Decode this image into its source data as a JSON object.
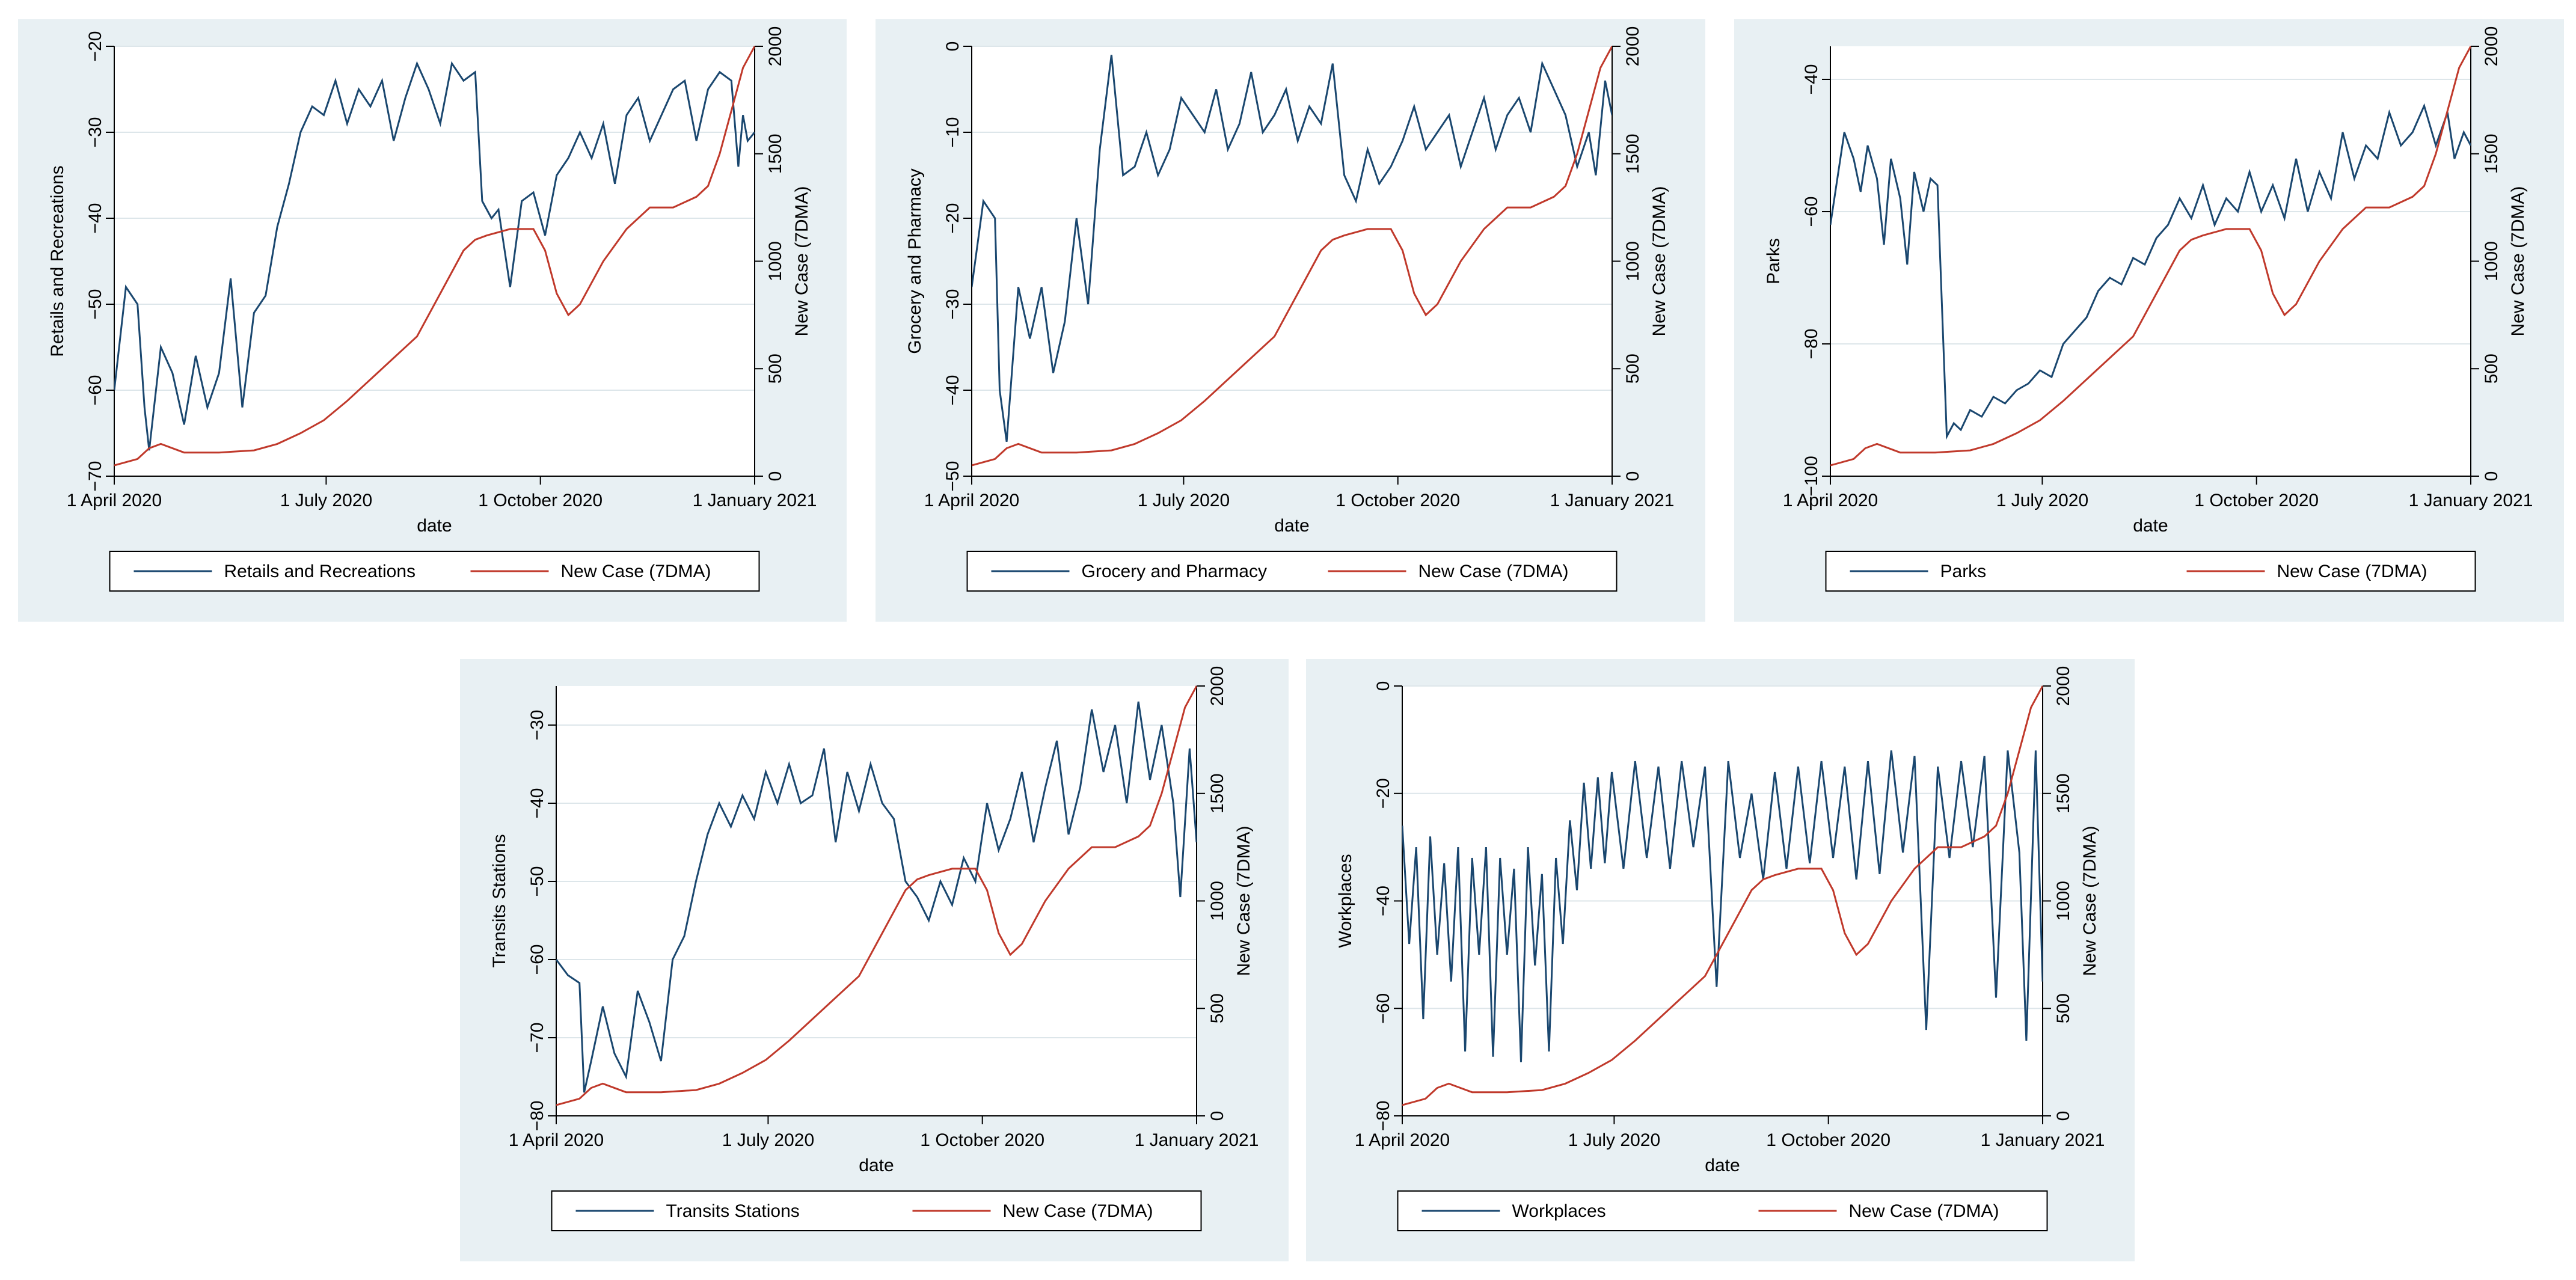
{
  "colors": {
    "mobility": "#1a476f",
    "cases": "#c0392b",
    "panel_bg": "#e8f0f3"
  },
  "chart_data": [
    {
      "type": "line",
      "panel": "p1",
      "xlabel": "date",
      "x_ticks": [
        "1 April 2020",
        "1 July 2020",
        "1 October 2020",
        "1 January 2021"
      ],
      "x_range": [
        0,
        275
      ],
      "ylabel_left": "Retails and Recreations",
      "ylim_left": [
        -70,
        -20
      ],
      "yticks_left": [
        -70,
        -60,
        -50,
        -40,
        -30,
        -20
      ],
      "ylabel_right": "New Case (7DMA)",
      "ylim_right": [
        0,
        2000
      ],
      "yticks_right": [
        0,
        500,
        1000,
        1500,
        2000
      ],
      "legend": [
        "Retails and Recreations",
        "New Case (7DMA)"
      ],
      "mobility": {
        "name": "Retails and Recreations",
        "x": [
          0,
          5,
          10,
          13,
          15,
          20,
          25,
          30,
          35,
          40,
          45,
          50,
          55,
          60,
          65,
          70,
          75,
          80,
          85,
          90,
          95,
          100,
          105,
          110,
          115,
          120,
          125,
          130,
          135,
          140,
          145,
          150,
          155,
          158,
          162,
          165,
          170,
          175,
          180,
          185,
          190,
          195,
          200,
          205,
          210,
          215,
          220,
          225,
          230,
          235,
          240,
          245,
          250,
          255,
          260,
          265,
          268,
          270,
          272,
          275
        ],
        "values": [
          -60,
          -48,
          -50,
          -62,
          -67,
          -55,
          -58,
          -64,
          -56,
          -62,
          -58,
          -47,
          -62,
          -51,
          -49,
          -41,
          -36,
          -30,
          -27,
          -28,
          -24,
          -29,
          -25,
          -27,
          -24,
          -31,
          -26,
          -22,
          -25,
          -29,
          -22,
          -24,
          -23,
          -38,
          -40,
          -39,
          -48,
          -38,
          -37,
          -42,
          -35,
          -33,
          -30,
          -33,
          -29,
          -36,
          -28,
          -26,
          -31,
          -28,
          -25,
          -24,
          -31,
          -25,
          -23,
          -24,
          -34,
          -28,
          -31,
          -30
        ]
      },
      "cases": {
        "name": "New Case (7DMA)",
        "x": [
          0,
          10,
          15,
          20,
          30,
          45,
          60,
          70,
          80,
          90,
          100,
          110,
          120,
          130,
          140,
          150,
          155,
          160,
          170,
          180,
          185,
          190,
          195,
          200,
          210,
          220,
          230,
          240,
          250,
          255,
          260,
          265,
          270,
          275
        ],
        "values": [
          50,
          80,
          130,
          150,
          110,
          110,
          120,
          150,
          200,
          260,
          350,
          450,
          550,
          650,
          850,
          1050,
          1100,
          1120,
          1150,
          1150,
          1050,
          850,
          750,
          800,
          1000,
          1150,
          1250,
          1250,
          1300,
          1350,
          1500,
          1700,
          1900,
          2000
        ]
      }
    },
    {
      "type": "line",
      "panel": "p2",
      "xlabel": "date",
      "x_ticks": [
        "1 April 2020",
        "1 July 2020",
        "1 October 2020",
        "1 January 2021"
      ],
      "x_range": [
        0,
        275
      ],
      "ylabel_left": "Grocery and Pharmacy",
      "ylim_left": [
        -50,
        0
      ],
      "yticks_left": [
        -50,
        -40,
        -30,
        -20,
        -10,
        0
      ],
      "ylabel_right": "New Case (7DMA)",
      "ylim_right": [
        0,
        2000
      ],
      "yticks_right": [
        0,
        500,
        1000,
        1500,
        2000
      ],
      "legend": [
        "Grocery and Pharmacy",
        "New Case (7DMA)"
      ],
      "mobility": {
        "name": "Grocery and Pharmacy",
        "x": [
          0,
          5,
          10,
          12,
          15,
          20,
          25,
          30,
          35,
          40,
          45,
          50,
          55,
          60,
          65,
          70,
          75,
          80,
          85,
          90,
          95,
          100,
          105,
          110,
          115,
          120,
          125,
          130,
          135,
          140,
          145,
          150,
          155,
          160,
          165,
          170,
          175,
          180,
          185,
          190,
          195,
          200,
          205,
          210,
          215,
          220,
          225,
          230,
          235,
          240,
          245,
          250,
          255,
          260,
          265,
          268,
          272,
          275
        ],
        "values": [
          -28,
          -18,
          -20,
          -40,
          -46,
          -28,
          -34,
          -28,
          -38,
          -32,
          -20,
          -30,
          -12,
          -1,
          -15,
          -14,
          -10,
          -15,
          -12,
          -6,
          -8,
          -10,
          -5,
          -12,
          -9,
          -3,
          -10,
          -8,
          -5,
          -11,
          -7,
          -9,
          -2,
          -15,
          -18,
          -12,
          -16,
          -14,
          -11,
          -7,
          -12,
          -10,
          -8,
          -14,
          -10,
          -6,
          -12,
          -8,
          -6,
          -10,
          -2,
          -5,
          -8,
          -14,
          -10,
          -15,
          -4,
          -8
        ]
      },
      "cases": {
        "name": "New Case (7DMA)",
        "x": [
          0,
          10,
          15,
          20,
          30,
          45,
          60,
          70,
          80,
          90,
          100,
          110,
          120,
          130,
          140,
          150,
          155,
          160,
          170,
          180,
          185,
          190,
          195,
          200,
          210,
          220,
          230,
          240,
          250,
          255,
          260,
          265,
          270,
          275
        ],
        "values": [
          50,
          80,
          130,
          150,
          110,
          110,
          120,
          150,
          200,
          260,
          350,
          450,
          550,
          650,
          850,
          1050,
          1100,
          1120,
          1150,
          1150,
          1050,
          850,
          750,
          800,
          1000,
          1150,
          1250,
          1250,
          1300,
          1350,
          1500,
          1700,
          1900,
          2000
        ]
      }
    },
    {
      "type": "line",
      "panel": "p3",
      "xlabel": "date",
      "x_ticks": [
        "1 April 2020",
        "1 July 2020",
        "1 October 2020",
        "1 January 2021"
      ],
      "x_range": [
        0,
        275
      ],
      "ylabel_left": "Parks",
      "ylim_left": [
        -100,
        -35
      ],
      "yticks_left": [
        -100,
        -80,
        -60,
        -40
      ],
      "ylabel_right": "New Case (7DMA)",
      "ylim_right": [
        0,
        2000
      ],
      "yticks_right": [
        0,
        500,
        1000,
        1500,
        2000
      ],
      "legend": [
        "Parks",
        "New Case (7DMA)"
      ],
      "mobility": {
        "name": "Parks",
        "x": [
          0,
          3,
          6,
          10,
          13,
          16,
          20,
          23,
          26,
          30,
          33,
          36,
          40,
          43,
          46,
          50,
          53,
          56,
          60,
          65,
          70,
          75,
          80,
          85,
          90,
          95,
          100,
          105,
          110,
          115,
          120,
          125,
          130,
          135,
          140,
          145,
          150,
          155,
          160,
          165,
          170,
          175,
          180,
          185,
          190,
          195,
          200,
          205,
          210,
          215,
          220,
          225,
          230,
          235,
          240,
          245,
          250,
          255,
          260,
          265,
          268,
          272,
          275
        ],
        "values": [
          -62,
          -55,
          -48,
          -52,
          -57,
          -50,
          -55,
          -65,
          -52,
          -58,
          -68,
          -54,
          -60,
          -55,
          -56,
          -94,
          -92,
          -93,
          -90,
          -91,
          -88,
          -89,
          -87,
          -86,
          -84,
          -85,
          -80,
          -78,
          -76,
          -72,
          -70,
          -71,
          -67,
          -68,
          -64,
          -62,
          -58,
          -61,
          -56,
          -62,
          -58,
          -60,
          -54,
          -60,
          -56,
          -61,
          -52,
          -60,
          -54,
          -58,
          -48,
          -55,
          -50,
          -52,
          -45,
          -50,
          -48,
          -44,
          -50,
          -45,
          -52,
          -48,
          -50
        ]
      },
      "cases": {
        "name": "New Case (7DMA)",
        "x": [
          0,
          10,
          15,
          20,
          30,
          45,
          60,
          70,
          80,
          90,
          100,
          110,
          120,
          130,
          140,
          150,
          155,
          160,
          170,
          180,
          185,
          190,
          195,
          200,
          210,
          220,
          230,
          240,
          250,
          255,
          260,
          265,
          270,
          275
        ],
        "values": [
          50,
          80,
          130,
          150,
          110,
          110,
          120,
          150,
          200,
          260,
          350,
          450,
          550,
          650,
          850,
          1050,
          1100,
          1120,
          1150,
          1150,
          1050,
          850,
          750,
          800,
          1000,
          1150,
          1250,
          1250,
          1300,
          1350,
          1500,
          1700,
          1900,
          2000
        ]
      }
    },
    {
      "type": "line",
      "panel": "p4",
      "xlabel": "date",
      "x_ticks": [
        "1 April 2020",
        "1 July 2020",
        "1 October 2020",
        "1 January 2021"
      ],
      "x_range": [
        0,
        275
      ],
      "ylabel_left": "Transits Stations",
      "ylim_left": [
        -80,
        -25
      ],
      "yticks_left": [
        -80,
        -70,
        -60,
        -50,
        -40,
        -30
      ],
      "ylabel_right": "New Case (7DMA)",
      "ylim_right": [
        0,
        2000
      ],
      "yticks_right": [
        0,
        500,
        1000,
        1500,
        2000
      ],
      "legend": [
        "Transits Stations",
        "New Case (7DMA)"
      ],
      "mobility": {
        "name": "Transits Stations",
        "x": [
          0,
          5,
          10,
          12,
          15,
          20,
          25,
          30,
          35,
          40,
          45,
          50,
          55,
          60,
          65,
          70,
          75,
          80,
          85,
          90,
          95,
          100,
          105,
          110,
          115,
          120,
          125,
          130,
          135,
          140,
          145,
          150,
          155,
          160,
          165,
          170,
          175,
          180,
          185,
          190,
          195,
          200,
          205,
          210,
          215,
          220,
          225,
          230,
          235,
          240,
          245,
          250,
          255,
          260,
          265,
          268,
          272,
          275
        ],
        "values": [
          -60,
          -62,
          -63,
          -77,
          -73,
          -66,
          -72,
          -75,
          -64,
          -68,
          -73,
          -60,
          -57,
          -50,
          -44,
          -40,
          -43,
          -39,
          -42,
          -36,
          -40,
          -35,
          -40,
          -39,
          -33,
          -45,
          -36,
          -41,
          -35,
          -40,
          -42,
          -50,
          -52,
          -55,
          -50,
          -53,
          -47,
          -50,
          -40,
          -46,
          -42,
          -36,
          -45,
          -38,
          -32,
          -44,
          -38,
          -28,
          -36,
          -30,
          -40,
          -27,
          -37,
          -30,
          -40,
          -52,
          -33,
          -45
        ]
      },
      "cases": {
        "name": "New Case (7DMA)",
        "x": [
          0,
          10,
          15,
          20,
          30,
          45,
          60,
          70,
          80,
          90,
          100,
          110,
          120,
          130,
          140,
          150,
          155,
          160,
          170,
          180,
          185,
          190,
          195,
          200,
          210,
          220,
          230,
          240,
          250,
          255,
          260,
          265,
          270,
          275
        ],
        "values": [
          50,
          80,
          130,
          150,
          110,
          110,
          120,
          150,
          200,
          260,
          350,
          450,
          550,
          650,
          850,
          1050,
          1100,
          1120,
          1150,
          1150,
          1050,
          850,
          750,
          800,
          1000,
          1150,
          1250,
          1250,
          1300,
          1350,
          1500,
          1700,
          1900,
          2000
        ]
      }
    },
    {
      "type": "line",
      "panel": "p5",
      "xlabel": "date",
      "x_ticks": [
        "1 April 2020",
        "1 July 2020",
        "1 October 2020",
        "1 January 2021"
      ],
      "x_range": [
        0,
        275
      ],
      "ylabel_left": "Workplaces",
      "ylim_left": [
        -80,
        0
      ],
      "yticks_left": [
        -80,
        -60,
        -40,
        -20,
        0
      ],
      "ylabel_right": "New Case (7DMA)",
      "ylim_right": [
        0,
        2000
      ],
      "yticks_right": [
        0,
        500,
        1000,
        1500,
        2000
      ],
      "legend": [
        "Workplaces",
        "New Case (7DMA)"
      ],
      "mobility": {
        "name": "Workplaces",
        "x": [
          0,
          3,
          6,
          9,
          12,
          15,
          18,
          21,
          24,
          27,
          30,
          33,
          36,
          39,
          42,
          45,
          48,
          51,
          54,
          57,
          60,
          63,
          66,
          69,
          72,
          75,
          78,
          81,
          84,
          87,
          90,
          95,
          100,
          105,
          110,
          115,
          120,
          125,
          130,
          135,
          140,
          145,
          150,
          155,
          160,
          165,
          170,
          175,
          180,
          185,
          190,
          195,
          200,
          205,
          210,
          215,
          220,
          225,
          230,
          235,
          240,
          245,
          250,
          255,
          260,
          265,
          268,
          272,
          275
        ],
        "values": [
          -26,
          -48,
          -30,
          -62,
          -28,
          -50,
          -33,
          -55,
          -30,
          -68,
          -32,
          -50,
          -30,
          -69,
          -32,
          -50,
          -34,
          -70,
          -30,
          -52,
          -35,
          -68,
          -32,
          -48,
          -25,
          -38,
          -18,
          -34,
          -17,
          -33,
          -16,
          -34,
          -14,
          -32,
          -15,
          -34,
          -14,
          -30,
          -15,
          -56,
          -14,
          -32,
          -20,
          -36,
          -16,
          -34,
          -15,
          -33,
          -14,
          -32,
          -15,
          -36,
          -14,
          -35,
          -12,
          -31,
          -13,
          -64,
          -15,
          -32,
          -14,
          -30,
          -13,
          -58,
          -12,
          -31,
          -66,
          -12,
          -55
        ]
      },
      "cases": {
        "name": "New Case (7DMA)",
        "x": [
          0,
          10,
          15,
          20,
          30,
          45,
          60,
          70,
          80,
          90,
          100,
          110,
          120,
          130,
          140,
          150,
          155,
          160,
          170,
          180,
          185,
          190,
          195,
          200,
          210,
          220,
          230,
          240,
          250,
          255,
          260,
          265,
          270,
          275
        ],
        "values": [
          50,
          80,
          130,
          150,
          110,
          110,
          120,
          150,
          200,
          260,
          350,
          450,
          550,
          650,
          850,
          1050,
          1100,
          1120,
          1150,
          1150,
          1050,
          850,
          750,
          800,
          1000,
          1150,
          1250,
          1250,
          1300,
          1350,
          1500,
          1700,
          1900,
          2000
        ]
      }
    }
  ]
}
